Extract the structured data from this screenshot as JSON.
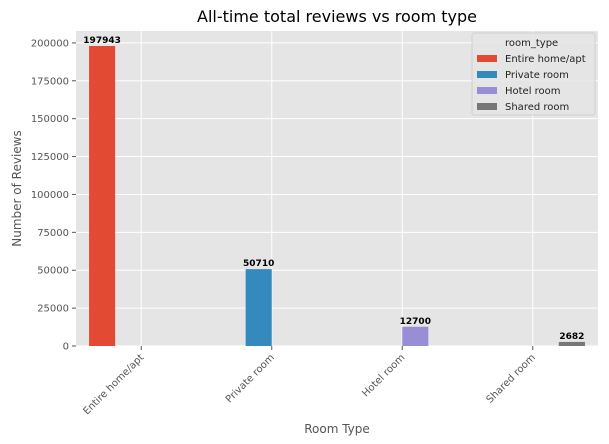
{
  "chart_data": {
    "type": "bar",
    "title": "All-time total reviews vs room type",
    "xlabel": "Room Type",
    "ylabel": "Number of Reviews",
    "categories": [
      "Entire home/apt",
      "Private room",
      "Hotel room",
      "Shared room"
    ],
    "series": [
      {
        "name": "Entire home/apt",
        "color": "#E24A33",
        "values": [
          197943,
          null,
          null,
          null
        ]
      },
      {
        "name": "Private room",
        "color": "#348ABD",
        "values": [
          null,
          50710,
          null,
          null
        ]
      },
      {
        "name": "Hotel room",
        "color": "#988ED5",
        "values": [
          null,
          null,
          12700,
          null
        ]
      },
      {
        "name": "Shared room",
        "color": "#777777",
        "values": [
          null,
          null,
          null,
          2682
        ]
      }
    ],
    "ylim": [
      0,
      207850
    ],
    "yticks": [
      0,
      25000,
      50000,
      75000,
      100000,
      125000,
      150000,
      175000,
      200000
    ],
    "grid": true,
    "legend": {
      "title": "room_type",
      "placement": "top-right"
    },
    "plot_background": "#E5E5E5"
  }
}
